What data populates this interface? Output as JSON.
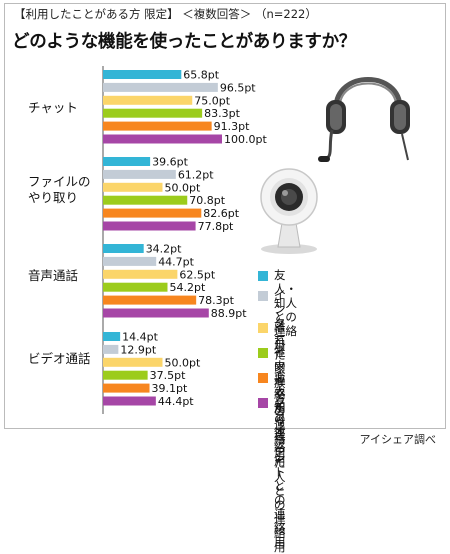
{
  "subtitle": "【利用したことがある方 限定】 ＜複数回答＞ （n=222）",
  "title": "どのような機能を使ったことがありますか？",
  "credit": "アイシェア調べ",
  "chart_data": {
    "type": "bar",
    "orientation": "horizontal",
    "unit": "pt",
    "categories": [
      "チャット",
      "ファイルの\nやり取り",
      "音声通話",
      "ビデオ通話"
    ],
    "series": [
      {
        "name": "友人・知人との連絡用",
        "color": "#33b5d6",
        "values": [
          65.8,
          39.6,
          34.2,
          14.4
        ]
      },
      {
        "name": "インターネットで\n知り合った人との連絡用",
        "color": "#c3ccd6",
        "values": [
          96.5,
          61.2,
          44.7,
          12.9
        ]
      },
      {
        "name": "離れた家族との連絡用",
        "color": "#fbd56a",
        "values": [
          75.0,
          50.0,
          62.5,
          50.0
        ]
      },
      {
        "name": "社内連絡用",
        "color": "#9ccc1c",
        "values": [
          83.3,
          70.8,
          54.2,
          37.5
        ]
      },
      {
        "name": "恋人との連絡用",
        "color": "#f7861f",
        "values": [
          91.3,
          82.6,
          78.3,
          39.1
        ]
      },
      {
        "name": "クライアントとの連絡用",
        "color": "#a646a6",
        "values": [
          100.0,
          77.8,
          88.9,
          44.4
        ]
      }
    ],
    "xlim": [
      0,
      100
    ],
    "grid": false,
    "legend_position": "bottom-right"
  }
}
